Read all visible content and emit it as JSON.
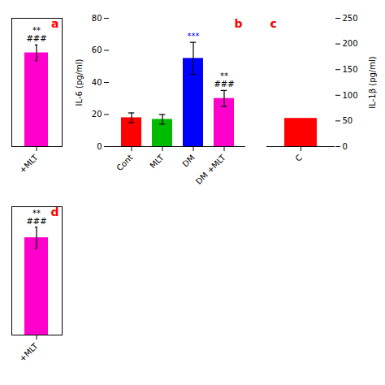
{
  "chart_data": [
    {
      "type": "bar",
      "title": "a",
      "title_color": "#ff0000",
      "categories": [
        "+MLT"
      ],
      "values": [
        95
      ],
      "errors": [
        8
      ],
      "colors": [
        "#ff00cc"
      ],
      "ylim": [
        0,
        130
      ],
      "yticks": [],
      "tick_labels": "x",
      "annotations": [
        {
          "category": "+MLT",
          "text": "**",
          "color": "#000000"
        },
        {
          "category": "+MLT",
          "text": "###",
          "color": "#000000"
        }
      ]
    },
    {
      "type": "bar",
      "title": "b",
      "title_color": "#ff0000",
      "categories": [
        "Cont",
        "MLT",
        "DM",
        "DM +MLT"
      ],
      "values": [
        18,
        17,
        55,
        30
      ],
      "errors": [
        3,
        3,
        10,
        5
      ],
      "colors": [
        "#ff0000",
        "#00bb00",
        "#0000ff",
        "#ff00cc"
      ],
      "ylabel": "IL-6 (pg/ml)",
      "ylim": [
        0,
        80
      ],
      "yticks": [
        0,
        20,
        40,
        60,
        80
      ],
      "annotations": [
        {
          "category": "DM",
          "text": "***",
          "color": "#0000ff"
        },
        {
          "category": "DM +MLT",
          "text": "**",
          "color": "#000000"
        },
        {
          "category": "DM +MLT",
          "text": "###",
          "color": "#000000"
        }
      ]
    },
    {
      "type": "bar",
      "title": "c",
      "title_color": "#ff0000",
      "categories": [
        "C"
      ],
      "values": [
        55
      ],
      "colors": [
        "#ff0000"
      ],
      "ylabel": "IL-1β (pg/ml)",
      "ylim": [
        0,
        250
      ],
      "yticks": [
        0,
        50,
        100,
        150,
        200,
        250
      ]
    },
    {
      "type": "bar",
      "title": "d",
      "title_color": "#ff0000",
      "categories": [
        "+MLT"
      ],
      "values": [
        110
      ],
      "errors": [
        12
      ],
      "colors": [
        "#ff00cc"
      ],
      "ylim": [
        0,
        145
      ],
      "yticks": [],
      "tick_labels": "x",
      "annotations": [
        {
          "category": "+MLT",
          "text": "**",
          "color": "#000000"
        },
        {
          "category": "+MLT",
          "text": "###",
          "color": "#000000"
        }
      ]
    }
  ]
}
